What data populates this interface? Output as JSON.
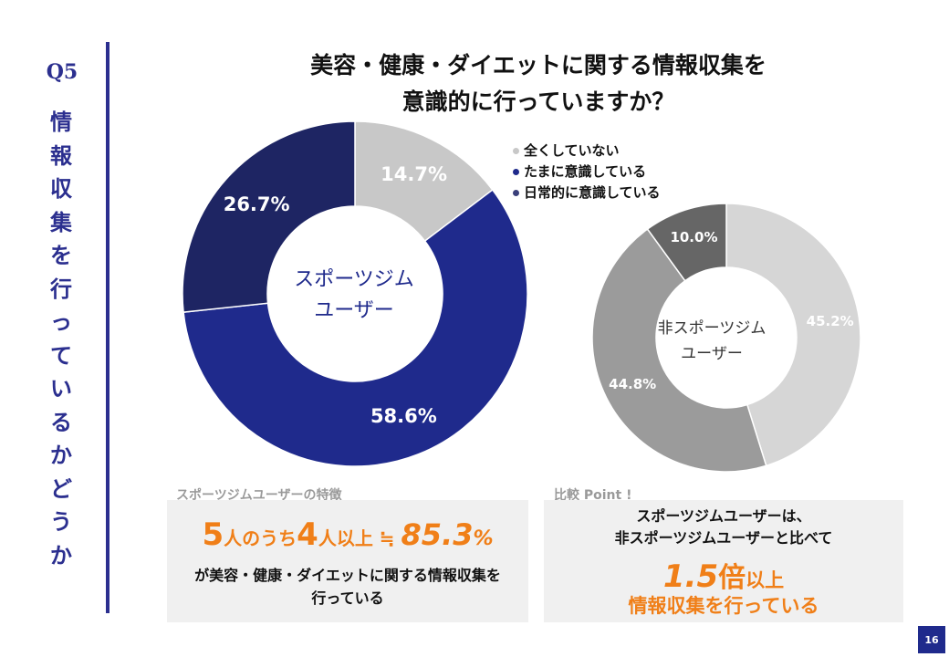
{
  "question": {
    "number": "Q5",
    "vertical_chars": [
      "情",
      "報",
      "収",
      "集",
      "を",
      "行",
      "っ",
      "て",
      "い",
      "る",
      "か",
      "ど",
      "う",
      "か"
    ]
  },
  "title": {
    "line1": "美容・健康・ダイエットに関する情報収集を",
    "line2": "意識的に行っていますか？"
  },
  "legend": [
    {
      "label": "全くしていない",
      "color": "#c8c8c8"
    },
    {
      "label": "たまに意識している",
      "color": "#1f2a8c"
    },
    {
      "label": "日常的に意識している",
      "color": "#3a3f7a"
    }
  ],
  "chart_data": [
    {
      "type": "pie",
      "donut": true,
      "center_label": [
        "スポーツジム",
        "ユーザー"
      ],
      "slices": [
        {
          "label": "全くしていない",
          "value": 14.7,
          "display": "14.7%",
          "color": "#c8c8c8"
        },
        {
          "label": "たまに意識している",
          "value": 58.6,
          "display": "58.6%",
          "color": "#1f2a8c"
        },
        {
          "label": "日常的に意識している",
          "value": 26.7,
          "display": "26.7%",
          "color": "#1e2563"
        }
      ]
    },
    {
      "type": "pie",
      "donut": true,
      "center_label": [
        "非スポーツジム",
        "ユーザー"
      ],
      "slices": [
        {
          "label": "全くしていない",
          "value": 45.2,
          "display": "45.2%",
          "color": "#d6d6d6"
        },
        {
          "label": "たまに意識している",
          "value": 44.8,
          "display": "44.8%",
          "color": "#9b9b9b"
        },
        {
          "label": "日常的に意識している",
          "value": 10.0,
          "display": "10.0%",
          "color": "#666666"
        }
      ]
    }
  ],
  "left_box": {
    "caption": "スポーツジムユーザーの特徴",
    "stat_a": "5",
    "stat_a_text": "人のうち",
    "stat_b": "4",
    "stat_b_text": "人以上 ≒ ",
    "stat_pct": "85.3",
    "stat_pct_sign": "%",
    "desc_line1": "が美容・健康・ダイエットに関する情報収集を",
    "desc_line2": "行っている"
  },
  "right_box": {
    "caption": "比較 Point !",
    "desc_line1": "スポーツジムユーザーは、",
    "desc_line2": "非スポーツジムユーザーと比べて",
    "ratio_num": "1.5",
    "ratio_unit": "倍",
    "ratio_above": "以上",
    "ratio_sub": "情報収集を行っている"
  },
  "accent_color": "#f07f18",
  "page_number": "16"
}
